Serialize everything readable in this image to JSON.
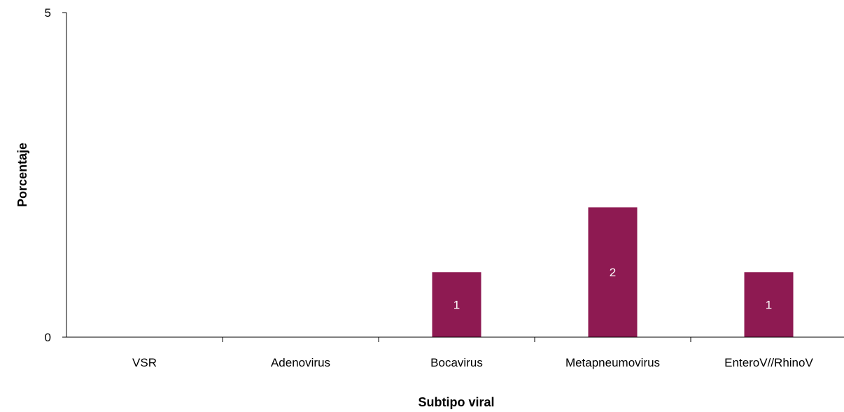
{
  "chart_data": {
    "type": "bar",
    "categories": [
      "VSR",
      "Adenovirus",
      "Bocavirus",
      "Metapneumovirus",
      "EnteroV//RhinoV"
    ],
    "values": [
      0,
      0,
      1,
      2,
      1
    ],
    "data_labels": [
      "",
      "",
      "1",
      "2",
      "1"
    ],
    "xlabel": "Subtipo viral",
    "ylabel": "Porcentaje",
    "ylim": [
      0,
      5
    ],
    "yticks": [
      "0",
      "5"
    ],
    "bar_color": "#8E1A52",
    "grid": false,
    "legend": "none"
  }
}
